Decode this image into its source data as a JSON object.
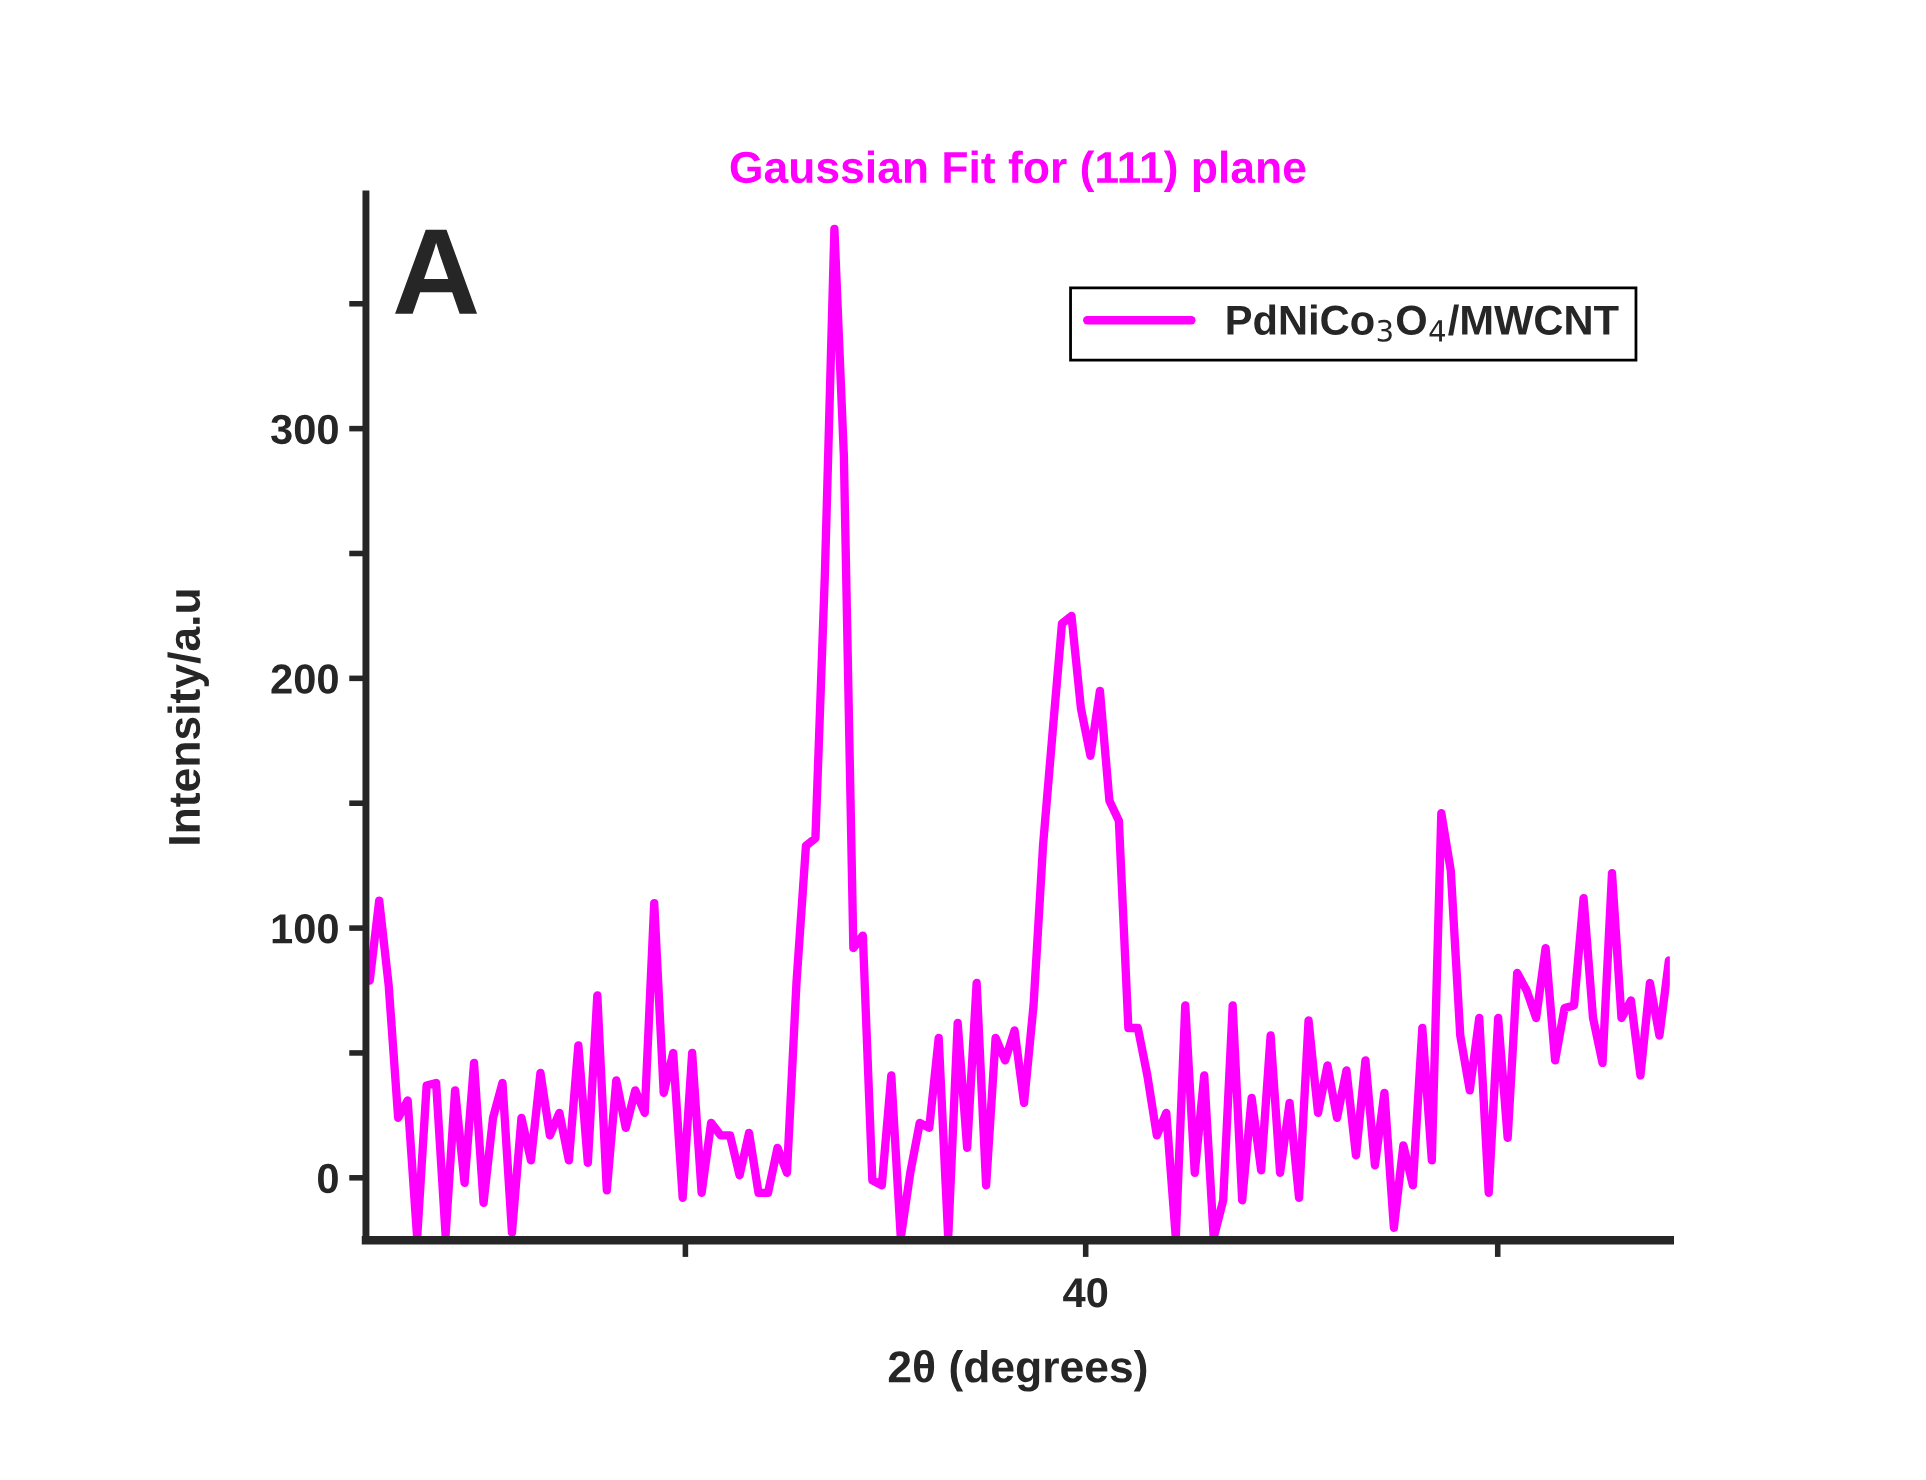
{
  "chart_data": {
    "type": "line",
    "title": "Gaussian Fit for (111) plane",
    "xlabel": "2θ (degrees)",
    "ylabel": "Intensity/a.u",
    "annotations": [
      "A",
      "40"
    ],
    "categories": [
      null,
      null,
      null,
      null,
      null,
      null,
      null,
      null,
      null,
      null,
      null,
      null,
      null,
      null,
      null,
      null,
      null,
      null,
      null,
      null,
      null,
      null,
      null,
      null,
      null,
      null,
      null,
      null,
      null,
      null,
      null,
      null,
      null,
      null,
      null,
      null,
      null,
      null,
      null,
      null,
      null,
      null,
      null,
      null,
      null,
      null,
      null,
      null,
      null,
      null,
      null,
      null,
      null,
      null,
      null,
      null,
      null,
      null,
      null,
      null,
      null,
      null,
      null,
      null,
      null,
      null,
      null,
      null,
      null,
      null,
      null,
      null,
      null,
      null,
      null,
      null,
      null,
      null,
      null,
      null,
      null,
      null,
      null,
      null,
      null,
      null,
      null,
      null,
      null,
      null,
      null,
      null,
      null,
      null,
      null,
      null,
      null,
      null,
      null,
      null,
      null,
      null,
      null,
      null,
      null,
      null,
      null,
      null,
      null,
      null,
      null,
      null,
      null,
      null,
      null,
      null,
      null,
      null,
      null,
      null,
      null,
      null,
      null,
      null,
      null,
      null,
      null,
      null,
      null,
      null,
      null,
      null,
      null,
      null,
      null,
      null,
      null,
      null
    ],
    "series": [
      {
        "name": "PdNiCo$_{3}$O$_{4}$/MWCNT",
        "color": "#ff00ff",
        "values": [
          79,
          111,
          77,
          24,
          31,
          -24,
          37,
          38,
          -23,
          35,
          -2,
          46,
          -10,
          24,
          38,
          -22,
          24,
          7,
          42,
          17,
          26,
          7,
          53,
          6,
          73,
          -5,
          39,
          20,
          35,
          26,
          110,
          34,
          50,
          -8,
          50,
          -6,
          22,
          17,
          17,
          1,
          18,
          -6,
          -6,
          12,
          2,
          78,
          133,
          136,
          242,
          380,
          289,
          92,
          97,
          -1,
          -3,
          41,
          -24,
          2,
          22,
          20,
          56,
          -24,
          62,
          12,
          78,
          -3,
          56,
          47,
          59,
          30,
          69,
          133,
          178,
          222,
          225,
          188,
          169,
          195,
          151,
          143,
          60,
          60,
          41,
          17,
          26,
          -24,
          69,
          2,
          41,
          -24,
          -9,
          69,
          -9,
          32,
          3,
          57,
          2,
          30,
          -8,
          63,
          26,
          45,
          24,
          43,
          9,
          47,
          5,
          34,
          -20,
          13,
          -3,
          60,
          7,
          146,
          123,
          57,
          35,
          64,
          -6,
          64,
          16,
          82,
          75,
          64,
          92,
          47,
          68,
          69,
          112,
          64,
          46,
          122,
          64,
          71,
          41,
          78,
          57,
          87
        ]
      }
    ],
    "ylim": [
      -25,
      394
    ],
    "yticks": [
      0,
      {
        "value": 50,
        "label": null
      },
      100,
      {
        "value": 150,
        "label": null
      },
      200,
      {
        "value": 250,
        "label": null
      },
      300,
      {
        "value": 350,
        "label": null
      }
    ],
    "grid": false,
    "legend": "top right",
    "marker": "none",
    "line_style": "solid"
  }
}
